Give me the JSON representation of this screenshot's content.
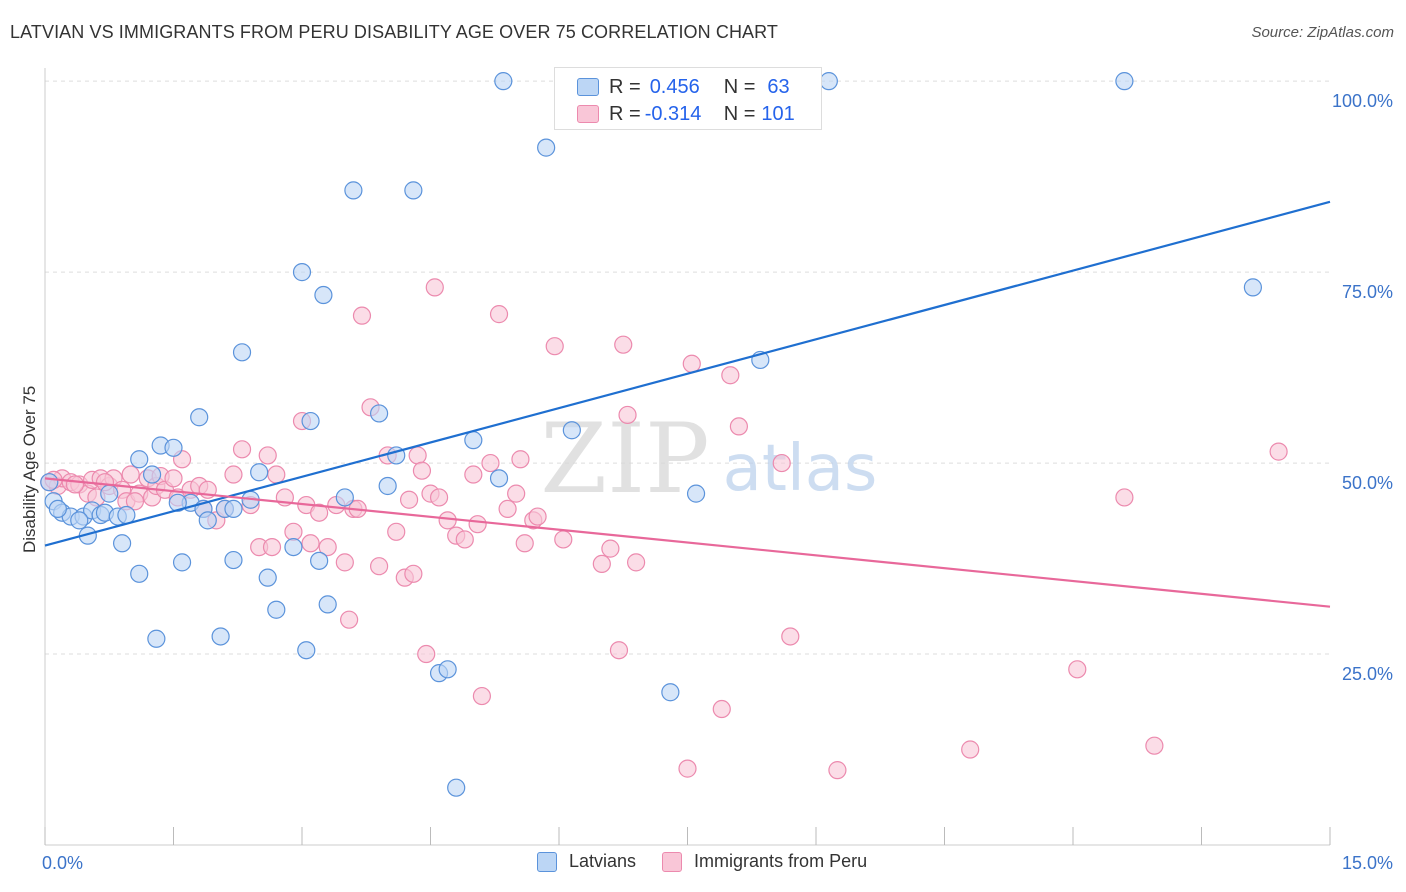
{
  "title": "LATVIAN VS IMMIGRANTS FROM PERU DISABILITY AGE OVER 75 CORRELATION CHART",
  "source": "Source: ZipAtlas.com",
  "watermark": {
    "zip": "ZIP",
    "atlas": "atlas"
  },
  "colors": {
    "blue": "#1f6fd0",
    "blue_fill": "#bcd6f5",
    "blue_stroke": "#5b93db",
    "pink": "#e8689a",
    "pink_fill": "#f9c6d7",
    "pink_stroke": "#ec8aae",
    "grid": "#dddddd",
    "tick_label": "#3b73c9"
  },
  "legend": {
    "rows": [
      {
        "r_label": "R =",
        "r_value": "0.456",
        "n_label": "N =",
        "n_value": "63",
        "series": "blue"
      },
      {
        "r_label": "R =",
        "r_value": "-0.314",
        "n_label": "N =",
        "n_value": "101",
        "series": "pink"
      }
    ]
  },
  "bottom_legend": [
    "Latvians",
    "Immigrants from Peru"
  ],
  "chart_data": {
    "type": "scatter",
    "title": "LATVIAN VS IMMIGRANTS FROM PERU DISABILITY AGE OVER 75 CORRELATION CHART",
    "xlabel": "",
    "ylabel": "Disability Age Over 75",
    "xlim": [
      0,
      15
    ],
    "ylim": [
      0,
      100
    ],
    "x_tick_labels": [
      "0.0%",
      "15.0%"
    ],
    "y_tick_labels": [
      "25.0%",
      "50.0%",
      "75.0%",
      "100.0%"
    ],
    "y_ticks": [
      25,
      50,
      75,
      100
    ],
    "grid": true,
    "legend_position": "top-center",
    "series": [
      {
        "name": "Latvians",
        "color": "blue",
        "trend": {
          "x": [
            0,
            15
          ],
          "y": [
            39.2,
            84.2
          ]
        },
        "points": [
          [
            0.05,
            47.5
          ],
          [
            0.1,
            45.0
          ],
          [
            0.2,
            43.5
          ],
          [
            0.3,
            43.0
          ],
          [
            0.45,
            43.0
          ],
          [
            0.5,
            40.5
          ],
          [
            0.55,
            43.8
          ],
          [
            0.65,
            43.2
          ],
          [
            0.7,
            43.5
          ],
          [
            0.85,
            43.0
          ],
          [
            0.9,
            39.5
          ],
          [
            1.1,
            50.5
          ],
          [
            1.1,
            35.5
          ],
          [
            1.25,
            48.5
          ],
          [
            1.35,
            52.3
          ],
          [
            1.5,
            52.0
          ],
          [
            1.6,
            37.0
          ],
          [
            1.7,
            44.8
          ],
          [
            1.8,
            56.0
          ],
          [
            1.85,
            44.0
          ],
          [
            1.9,
            42.5
          ],
          [
            2.05,
            27.3
          ],
          [
            2.1,
            44.0
          ],
          [
            2.2,
            44.0
          ],
          [
            2.2,
            37.3
          ],
          [
            2.3,
            64.5
          ],
          [
            2.5,
            48.8
          ],
          [
            2.6,
            35.0
          ],
          [
            2.7,
            30.8
          ],
          [
            2.9,
            39.0
          ],
          [
            3.0,
            75.0
          ],
          [
            3.05,
            25.5
          ],
          [
            3.1,
            55.5
          ],
          [
            3.2,
            37.2
          ],
          [
            3.25,
            72.0
          ],
          [
            3.3,
            31.5
          ],
          [
            3.6,
            85.7
          ],
          [
            3.9,
            56.5
          ],
          [
            4.0,
            47.0
          ],
          [
            4.1,
            51.0
          ],
          [
            4.3,
            85.7
          ],
          [
            4.6,
            22.5
          ],
          [
            4.7,
            23.0
          ],
          [
            4.8,
            7.5
          ],
          [
            5.0,
            53.0
          ],
          [
            5.3,
            48.0
          ],
          [
            5.35,
            100.0
          ],
          [
            5.85,
            91.3
          ],
          [
            6.15,
            54.3
          ],
          [
            7.3,
            20.0
          ],
          [
            7.6,
            46.0
          ],
          [
            8.35,
            63.5
          ],
          [
            9.15,
            100.0
          ],
          [
            12.6,
            100.0
          ],
          [
            14.1,
            73.0
          ],
          [
            0.15,
            44.0
          ],
          [
            0.4,
            42.5
          ],
          [
            0.95,
            43.2
          ],
          [
            1.3,
            27.0
          ],
          [
            2.4,
            45.2
          ],
          [
            3.5,
            45.5
          ],
          [
            0.75,
            46.0
          ],
          [
            1.55,
            44.8
          ]
        ]
      },
      {
        "name": "Immigrants from Peru",
        "color": "pink",
        "trend": {
          "x": [
            0,
            15
          ],
          "y": [
            48.0,
            31.2
          ]
        },
        "points": [
          [
            0.05,
            47.5
          ],
          [
            0.15,
            47.0
          ],
          [
            0.2,
            48.0
          ],
          [
            0.3,
            47.5
          ],
          [
            0.4,
            47.2
          ],
          [
            0.5,
            46.0
          ],
          [
            0.55,
            47.8
          ],
          [
            0.6,
            45.5
          ],
          [
            0.65,
            48.0
          ],
          [
            0.75,
            47.0
          ],
          [
            0.8,
            48.0
          ],
          [
            0.9,
            46.5
          ],
          [
            0.95,
            45.0
          ],
          [
            1.0,
            48.5
          ],
          [
            1.1,
            46.0
          ],
          [
            1.2,
            48.0
          ],
          [
            1.25,
            45.5
          ],
          [
            1.3,
            47.0
          ],
          [
            1.35,
            48.3
          ],
          [
            1.4,
            46.5
          ],
          [
            1.5,
            48.0
          ],
          [
            1.55,
            45.5
          ],
          [
            1.6,
            50.5
          ],
          [
            1.7,
            46.5
          ],
          [
            1.8,
            47.0
          ],
          [
            1.85,
            44.0
          ],
          [
            1.9,
            46.5
          ],
          [
            2.0,
            42.5
          ],
          [
            2.1,
            44.0
          ],
          [
            2.2,
            48.5
          ],
          [
            2.3,
            51.8
          ],
          [
            2.4,
            44.5
          ],
          [
            2.5,
            39.0
          ],
          [
            2.6,
            51.0
          ],
          [
            2.7,
            48.5
          ],
          [
            2.8,
            45.5
          ],
          [
            2.9,
            41.0
          ],
          [
            3.0,
            55.5
          ],
          [
            3.05,
            44.5
          ],
          [
            3.1,
            39.5
          ],
          [
            3.2,
            43.5
          ],
          [
            3.3,
            39.0
          ],
          [
            3.4,
            44.5
          ],
          [
            3.5,
            37.0
          ],
          [
            3.55,
            29.5
          ],
          [
            3.6,
            44.0
          ],
          [
            3.7,
            69.3
          ],
          [
            3.8,
            57.3
          ],
          [
            3.9,
            36.5
          ],
          [
            4.0,
            51.0
          ],
          [
            4.1,
            41.0
          ],
          [
            4.2,
            35.0
          ],
          [
            4.3,
            35.5
          ],
          [
            4.35,
            51.0
          ],
          [
            4.4,
            49.0
          ],
          [
            4.45,
            25.0
          ],
          [
            4.5,
            46.0
          ],
          [
            4.55,
            73.0
          ],
          [
            4.6,
            45.5
          ],
          [
            4.7,
            42.5
          ],
          [
            4.8,
            40.5
          ],
          [
            4.9,
            40.0
          ],
          [
            5.0,
            48.5
          ],
          [
            5.05,
            42.0
          ],
          [
            5.1,
            19.5
          ],
          [
            5.2,
            50.0
          ],
          [
            5.3,
            69.5
          ],
          [
            5.4,
            44.0
          ],
          [
            5.5,
            46.0
          ],
          [
            5.55,
            50.5
          ],
          [
            5.6,
            39.5
          ],
          [
            5.7,
            42.5
          ],
          [
            5.75,
            43.0
          ],
          [
            5.95,
            65.3
          ],
          [
            6.05,
            40.0
          ],
          [
            6.5,
            36.8
          ],
          [
            6.6,
            38.8
          ],
          [
            6.7,
            25.5
          ],
          [
            6.75,
            65.5
          ],
          [
            6.8,
            56.3
          ],
          [
            6.9,
            37.0
          ],
          [
            7.5,
            10.0
          ],
          [
            7.55,
            63.0
          ],
          [
            7.9,
            17.8
          ],
          [
            8.0,
            61.5
          ],
          [
            8.1,
            54.8
          ],
          [
            8.6,
            50.0
          ],
          [
            8.7,
            27.3
          ],
          [
            9.25,
            9.8
          ],
          [
            10.8,
            12.5
          ],
          [
            12.05,
            23.0
          ],
          [
            12.6,
            45.5
          ],
          [
            12.95,
            13.0
          ],
          [
            14.4,
            51.5
          ],
          [
            0.1,
            47.8
          ],
          [
            0.35,
            47.2
          ],
          [
            0.7,
            47.5
          ],
          [
            1.05,
            45.0
          ],
          [
            2.65,
            39.0
          ],
          [
            3.65,
            44.0
          ],
          [
            4.25,
            45.2
          ]
        ]
      }
    ]
  }
}
